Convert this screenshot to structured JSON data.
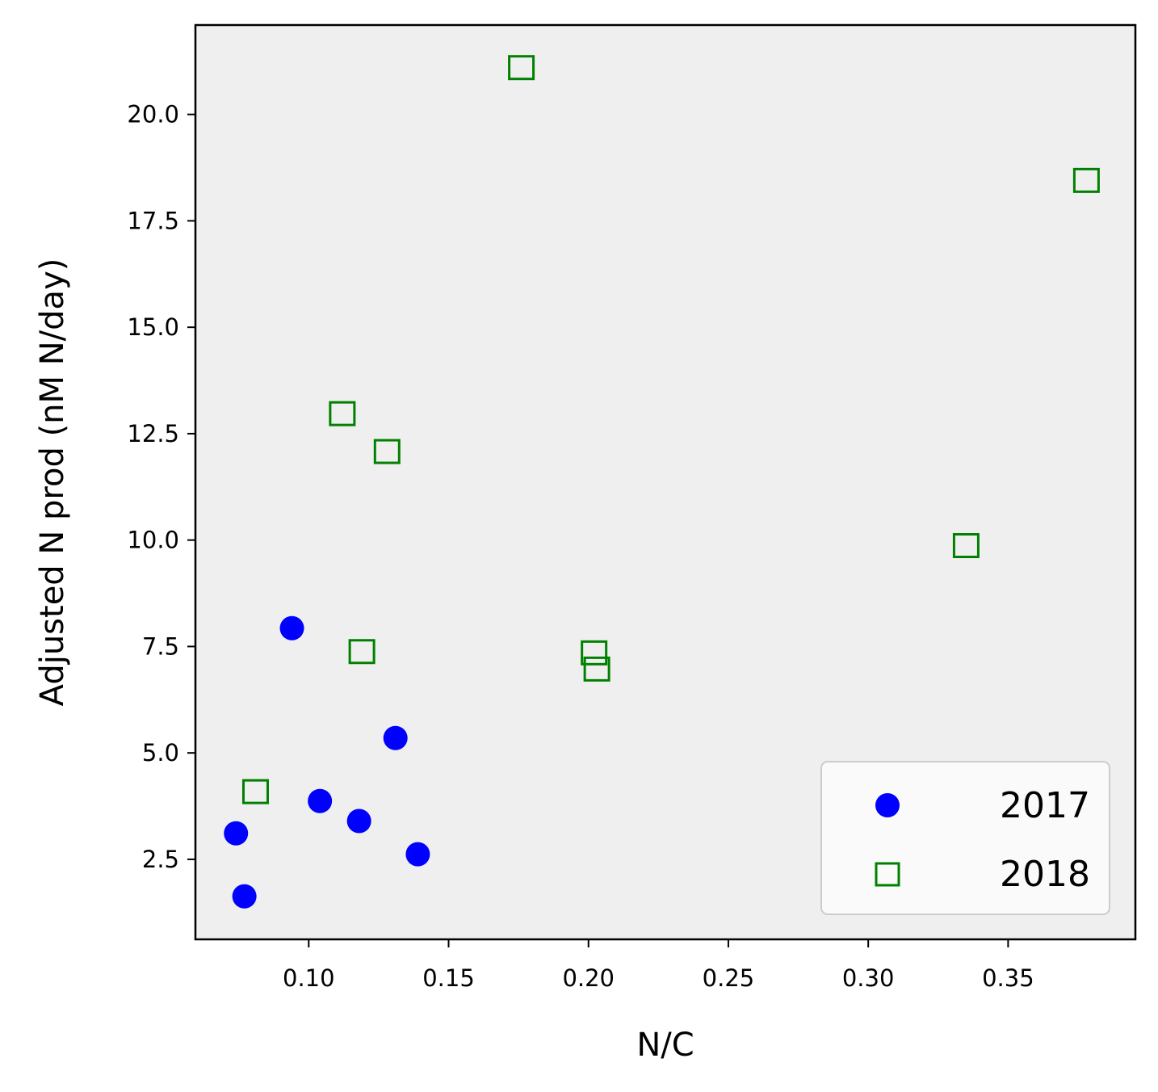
{
  "chart_data": {
    "type": "scatter",
    "title": "",
    "xlabel": "N/C",
    "ylabel": "Adjusted N prod (nM N/day)",
    "xlim": [
      0.0595,
      0.3955
    ],
    "ylim": [
      0.62,
      22.1
    ],
    "xticks": [
      0.1,
      0.15,
      0.2,
      0.25,
      0.3,
      0.35
    ],
    "xtick_labels": [
      "0.10",
      "0.15",
      "0.20",
      "0.25",
      "0.30",
      "0.35"
    ],
    "yticks": [
      2.5,
      5.0,
      7.5,
      10.0,
      12.5,
      15.0,
      17.5,
      20.0
    ],
    "ytick_labels": [
      "2.5",
      "5.0",
      "7.5",
      "10.0",
      "12.5",
      "15.0",
      "17.5",
      "20.0"
    ],
    "grid": false,
    "background": "#efefef",
    "legend_position": "lower right",
    "series": [
      {
        "name": "2017",
        "marker": "circle",
        "color": "#0000ff",
        "filled": true,
        "points": [
          {
            "x": 0.094,
            "y": 7.93
          },
          {
            "x": 0.131,
            "y": 5.35
          },
          {
            "x": 0.104,
            "y": 3.87
          },
          {
            "x": 0.118,
            "y": 3.4
          },
          {
            "x": 0.074,
            "y": 3.11
          },
          {
            "x": 0.139,
            "y": 2.62
          },
          {
            "x": 0.077,
            "y": 1.63
          }
        ]
      },
      {
        "name": "2018",
        "marker": "square",
        "color": "#008000",
        "filled": false,
        "points": [
          {
            "x": 0.176,
            "y": 21.1
          },
          {
            "x": 0.378,
            "y": 18.45
          },
          {
            "x": 0.112,
            "y": 12.97
          },
          {
            "x": 0.128,
            "y": 12.08
          },
          {
            "x": 0.335,
            "y": 9.87
          },
          {
            "x": 0.119,
            "y": 7.38
          },
          {
            "x": 0.202,
            "y": 7.35
          },
          {
            "x": 0.203,
            "y": 6.97
          },
          {
            "x": 0.081,
            "y": 4.09
          }
        ]
      }
    ]
  }
}
